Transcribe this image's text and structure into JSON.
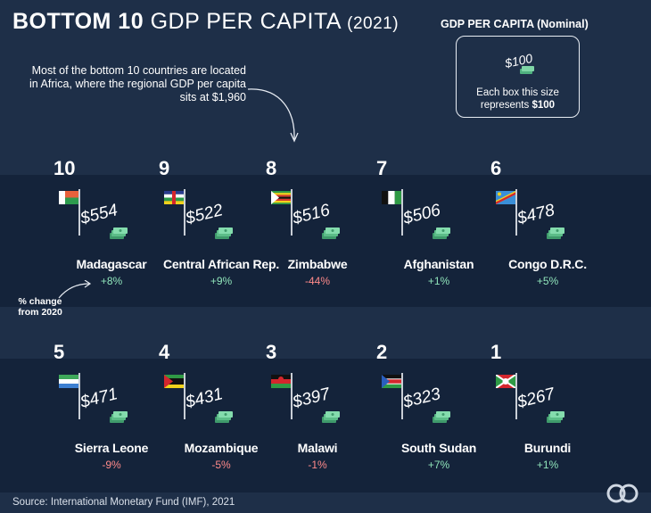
{
  "title": {
    "bold": "BOTTOM 10",
    "light": "GDP PER CAPITA",
    "year": "(2021)"
  },
  "legend": {
    "heading": "GDP PER CAPITA (Nominal)",
    "sample_value": "$100",
    "note_prefix": "Each box this size",
    "note_line2": "represents",
    "note_value": "$100"
  },
  "annotation": "Most of the bottom 10 countries are located in Africa, where the regional GDP per capita sits at $1,960",
  "pct_note": "% change from 2020",
  "source": "Source: International Monetary Fund (IMF), 2021",
  "colors": {
    "background": "#1e2f48",
    "band": "#14233a",
    "positive": "#8fe3b9",
    "negative": "#ff8a8a",
    "money": "#7fd6a6"
  },
  "icons": [
    "flag-icon",
    "money-stack-icon",
    "curved-arrow-icon",
    "visual-capitalist-logo-icon"
  ],
  "chart_data": {
    "type": "table",
    "title": "BOTTOM 10 GDP PER CAPITA (2021)",
    "columns": [
      "rank",
      "country",
      "gdp_per_capita_usd",
      "change_from_2020_pct"
    ],
    "rows": [
      {
        "rank": "10",
        "country": "Madagascar",
        "value": 554,
        "label": "$554",
        "change": "+8%"
      },
      {
        "rank": "9",
        "country": "Central African Rep.",
        "value": 522,
        "label": "$522",
        "change": "+9%"
      },
      {
        "rank": "8",
        "country": "Zimbabwe",
        "value": 516,
        "label": "$516",
        "change": "-44%"
      },
      {
        "rank": "7",
        "country": "Afghanistan",
        "value": 506,
        "label": "$506",
        "change": "+1%"
      },
      {
        "rank": "6",
        "country": "Congo D.R.C.",
        "value": 478,
        "label": "$478",
        "change": "+5%"
      },
      {
        "rank": "5",
        "country": "Sierra Leone",
        "value": 471,
        "label": "$471",
        "change": "-9%"
      },
      {
        "rank": "4",
        "country": "Mozambique",
        "value": 431,
        "label": "$431",
        "change": "-5%"
      },
      {
        "rank": "3",
        "country": "Malawi",
        "value": 397,
        "label": "$397",
        "change": "-1%"
      },
      {
        "rank": "2",
        "country": "South Sudan",
        "value": 323,
        "label": "$323",
        "change": "+7%"
      },
      {
        "rank": "1",
        "country": "Burundi",
        "value": 267,
        "label": "$267",
        "change": "+1%"
      }
    ]
  }
}
